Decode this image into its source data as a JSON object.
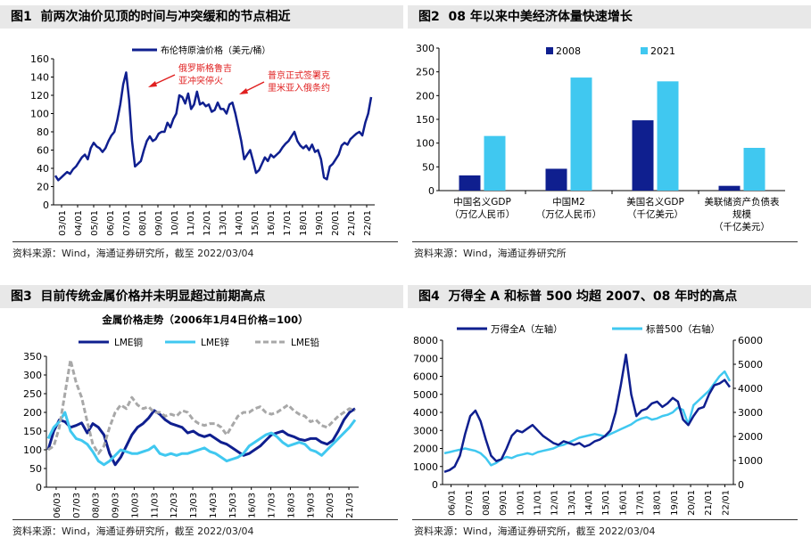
{
  "colors": {
    "navy": "#0f1f8f",
    "cyan": "#40c8f0",
    "gray": "#a8a8a8",
    "red": "#e02020",
    "title_bg": "#e8e8e8"
  },
  "chart_data": [
    {
      "id": "fig1",
      "type": "line",
      "title_num": "图1",
      "title": "前两次油价见顶的时间与冲突缓和的节点相近",
      "source": "资料来源：Wind，海通证券研究所，截至 2022/03/04",
      "legend": [
        "布伦特原油价格（美元/桶）"
      ],
      "ylim": [
        0,
        160
      ],
      "yticks": [
        "0",
        "20",
        "40",
        "60",
        "80",
        "100",
        "120",
        "140",
        "160"
      ],
      "x_ticks": [
        "03/01",
        "04/01",
        "05/01",
        "06/01",
        "07/01",
        "08/01",
        "09/01",
        "10/01",
        "11/01",
        "12/01",
        "13/01",
        "14/01",
        "15/01",
        "16/01",
        "17/01",
        "18/01",
        "19/01",
        "20/01",
        "21/01",
        "22/01"
      ],
      "series": [
        {
          "name": "布伦特原油价格",
          "values": [
            32,
            27,
            30,
            33,
            36,
            34,
            39,
            42,
            47,
            52,
            55,
            50,
            62,
            68,
            64,
            62,
            58,
            62,
            70,
            76,
            80,
            93,
            110,
            132,
            145,
            115,
            70,
            42,
            45,
            48,
            60,
            70,
            75,
            70,
            72,
            78,
            80,
            80,
            90,
            85,
            94,
            100,
            120,
            118,
            111,
            122,
            105,
            110,
            124,
            110,
            112,
            108,
            110,
            102,
            104,
            112,
            105,
            105,
            100,
            110,
            112,
            100,
            85,
            70,
            50,
            55,
            60,
            48,
            35,
            38,
            45,
            52,
            48,
            55,
            52,
            55,
            58,
            63,
            67,
            70,
            75,
            80,
            70,
            65,
            62,
            65,
            60,
            66,
            58,
            60,
            50,
            30,
            28,
            42,
            45,
            50,
            55,
            65,
            68,
            66,
            72,
            75,
            78,
            80,
            76,
            90,
            100,
            118
          ]
        }
      ],
      "annotations": [
        {
          "lines": [
            "俄罗斯格鲁吉",
            "亚冲突停火"
          ],
          "color": "#e02020"
        },
        {
          "lines": [
            "普京正式签署克",
            "里米亚入俄条约"
          ],
          "color": "#e02020"
        }
      ]
    },
    {
      "id": "fig2",
      "type": "bar",
      "title_num": "图2",
      "title": "08 年以来中美经济体量快速增长",
      "source": "资料来源：Wind，海通证券研究所",
      "ylim": [
        0,
        300
      ],
      "yticks": [
        "0",
        "50",
        "100",
        "150",
        "200",
        "250",
        "300"
      ],
      "categories": [
        [
          "中国名义GDP",
          "（万亿人民币）"
        ],
        [
          "中国M2",
          "（万亿人民币）"
        ],
        [
          "美国名义GDP",
          "（千亿美元）"
        ],
        [
          "美联储资产负债表",
          "规模",
          "（千亿美元）"
        ]
      ],
      "series": [
        {
          "name": "2008",
          "values": [
            32,
            46,
            148,
            10
          ]
        },
        {
          "name": "2021",
          "values": [
            115,
            238,
            230,
            90
          ]
        }
      ]
    },
    {
      "id": "fig3",
      "type": "line",
      "title_num": "图3",
      "title": "目前传统金属价格并未明显超过前期高点",
      "subtitle": "金属价格走势（2006年1月4日价格=100）",
      "source": "资料来源：Wind，海通证券研究所，截至 2022/03/04",
      "ylim": [
        0,
        350
      ],
      "yticks": [
        "0",
        "50",
        "100",
        "150",
        "200",
        "250",
        "300",
        "350"
      ],
      "x_ticks": [
        "06/03",
        "07/03",
        "08/03",
        "09/03",
        "10/03",
        "11/03",
        "12/03",
        "13/03",
        "14/03",
        "15/03",
        "16/03",
        "17/03",
        "18/03",
        "19/03",
        "20/03",
        "21/03"
      ],
      "series": [
        {
          "name": "LME铜",
          "values": [
            100,
            150,
            180,
            175,
            160,
            165,
            172,
            145,
            170,
            160,
            140,
            90,
            60,
            80,
            110,
            140,
            160,
            170,
            185,
            205,
            195,
            180,
            170,
            165,
            160,
            145,
            150,
            140,
            135,
            140,
            130,
            120,
            115,
            105,
            95,
            85,
            90,
            100,
            110,
            125,
            140,
            145,
            150,
            140,
            135,
            128,
            125,
            130,
            130,
            120,
            115,
            125,
            150,
            180,
            200,
            210
          ]
        },
        {
          "name": "LME锌",
          "values": [
            130,
            160,
            175,
            200,
            150,
            130,
            125,
            115,
            95,
            70,
            60,
            70,
            85,
            100,
            95,
            90,
            90,
            95,
            100,
            110,
            90,
            85,
            90,
            85,
            90,
            90,
            95,
            100,
            105,
            95,
            90,
            80,
            70,
            75,
            80,
            90,
            110,
            120,
            130,
            140,
            145,
            135,
            120,
            110,
            115,
            120,
            115,
            100,
            95,
            85,
            100,
            115,
            130,
            145,
            160,
            180
          ]
        },
        {
          "name": "LME铅",
          "values": [
            100,
            110,
            160,
            250,
            340,
            280,
            240,
            175,
            115,
            90,
            110,
            160,
            200,
            220,
            210,
            240,
            220,
            210,
            215,
            200,
            200,
            190,
            195,
            190,
            205,
            200,
            180,
            170,
            165,
            170,
            170,
            160,
            140,
            165,
            190,
            200,
            200,
            210,
            215,
            200,
            195,
            200,
            210,
            220,
            205,
            195,
            190,
            175,
            180,
            165,
            160,
            175,
            190,
            200,
            210,
            205
          ]
        }
      ]
    },
    {
      "id": "fig4",
      "type": "line",
      "title_num": "图4",
      "title": "万得全 A 和标普 500 均超 2007、08 年时的高点",
      "source": "资料来源：Wind，海通证券研究所，截至 2022/03/04",
      "ylim_left": [
        0,
        8000
      ],
      "ylim_right": [
        0,
        6000
      ],
      "yticks_left": [
        "0",
        "1000",
        "2000",
        "3000",
        "4000",
        "5000",
        "6000",
        "7000",
        "8000"
      ],
      "yticks_right": [
        "0",
        "1000",
        "2000",
        "3000",
        "4000",
        "5000",
        "6000"
      ],
      "x_ticks": [
        "06/01",
        "07/01",
        "08/01",
        "09/01",
        "10/01",
        "11/01",
        "12/01",
        "13/01",
        "14/01",
        "15/01",
        "16/01",
        "17/01",
        "18/01",
        "19/01",
        "20/01",
        "21/01",
        "22/01"
      ],
      "series": [
        {
          "name": "万得全A（左轴）",
          "axis": "left",
          "values": [
            700,
            800,
            1000,
            1600,
            2800,
            3800,
            4100,
            3500,
            2500,
            1600,
            1300,
            1400,
            2000,
            2700,
            3000,
            2900,
            3100,
            3300,
            3000,
            2700,
            2500,
            2300,
            2200,
            2400,
            2300,
            2200,
            2300,
            2100,
            2200,
            2400,
            2500,
            2700,
            3000,
            4000,
            5500,
            7200,
            5000,
            3800,
            4100,
            4200,
            4500,
            4600,
            4300,
            4500,
            4800,
            4600,
            3600,
            3300,
            3800,
            4200,
            4300,
            5000,
            5500,
            5600,
            5800,
            5400
          ]
        },
        {
          "name": "标普500（右轴）",
          "axis": "right",
          "values": [
            1300,
            1350,
            1400,
            1450,
            1500,
            1450,
            1400,
            1300,
            1100,
            800,
            900,
            1050,
            1150,
            1100,
            1200,
            1250,
            1300,
            1250,
            1350,
            1400,
            1450,
            1500,
            1600,
            1650,
            1750,
            1850,
            1950,
            2000,
            2050,
            2100,
            2050,
            2000,
            2100,
            2200,
            2300,
            2400,
            2500,
            2650,
            2750,
            2800,
            2700,
            2750,
            2850,
            2900,
            3000,
            3200,
            3100,
            2500,
            3300,
            3500,
            3700,
            3900,
            4200,
            4500,
            4700,
            4300
          ]
        }
      ]
    }
  ]
}
